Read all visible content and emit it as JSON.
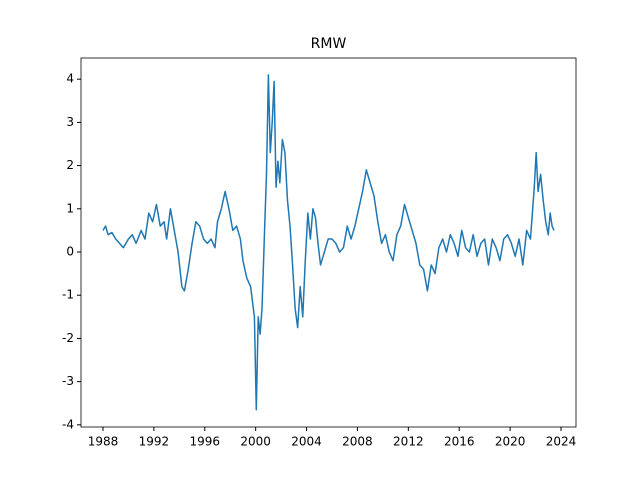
{
  "chart_data": {
    "type": "line",
    "title": "RMW",
    "x": [
      1988.0,
      1988.2,
      1988.4,
      1988.7,
      1989.0,
      1989.3,
      1989.6,
      1990.0,
      1990.3,
      1990.6,
      1991.0,
      1991.3,
      1991.6,
      1991.9,
      1992.2,
      1992.5,
      1992.8,
      1993.0,
      1993.3,
      1993.6,
      1993.9,
      1994.2,
      1994.4,
      1994.7,
      1995.0,
      1995.3,
      1995.6,
      1995.9,
      1996.2,
      1996.5,
      1996.8,
      1997.0,
      1997.3,
      1997.6,
      1997.9,
      1998.2,
      1998.5,
      1998.8,
      1999.0,
      1999.3,
      1999.6,
      1999.9,
      2000.05,
      2000.2,
      2000.35,
      2000.5,
      2000.7,
      2000.85,
      2001.0,
      2001.15,
      2001.3,
      2001.45,
      2001.6,
      2001.75,
      2001.9,
      2002.1,
      2002.3,
      2002.5,
      2002.7,
      2002.9,
      2003.1,
      2003.3,
      2003.5,
      2003.7,
      2003.9,
      2004.1,
      2004.3,
      2004.5,
      2004.7,
      2004.9,
      2005.1,
      2005.4,
      2005.7,
      2006.0,
      2006.3,
      2006.6,
      2006.9,
      2007.2,
      2007.5,
      2007.8,
      2008.1,
      2008.4,
      2008.7,
      2009.0,
      2009.3,
      2009.6,
      2009.9,
      2010.2,
      2010.5,
      2010.8,
      2011.1,
      2011.4,
      2011.7,
      2012.0,
      2012.3,
      2012.6,
      2012.9,
      2013.2,
      2013.5,
      2013.8,
      2014.1,
      2014.4,
      2014.7,
      2015.0,
      2015.3,
      2015.6,
      2015.9,
      2016.2,
      2016.5,
      2016.8,
      2017.1,
      2017.4,
      2017.7,
      2018.0,
      2018.3,
      2018.6,
      2018.9,
      2019.2,
      2019.5,
      2019.8,
      2020.1,
      2020.4,
      2020.7,
      2021.0,
      2021.3,
      2021.6,
      2021.9,
      2022.05,
      2022.2,
      2022.4,
      2022.6,
      2022.8,
      2023.0,
      2023.15,
      2023.3,
      2023.45
    ],
    "series": [
      {
        "color": "#1f77b4",
        "values": [
          0.5,
          0.6,
          0.4,
          0.45,
          0.3,
          0.2,
          0.1,
          0.3,
          0.4,
          0.2,
          0.5,
          0.3,
          0.9,
          0.7,
          1.1,
          0.6,
          0.7,
          0.3,
          1.0,
          0.5,
          0.0,
          -0.8,
          -0.9,
          -0.4,
          0.2,
          0.7,
          0.6,
          0.3,
          0.2,
          0.3,
          0.1,
          0.7,
          1.0,
          1.4,
          1.0,
          0.5,
          0.6,
          0.3,
          -0.2,
          -0.6,
          -0.8,
          -1.5,
          -3.65,
          -1.5,
          -1.9,
          -1.3,
          0.5,
          1.8,
          4.1,
          2.3,
          3.0,
          3.95,
          1.5,
          2.1,
          1.6,
          2.6,
          2.3,
          1.2,
          0.6,
          -0.3,
          -1.3,
          -1.75,
          -0.8,
          -1.5,
          -0.2,
          0.9,
          0.3,
          1.0,
          0.8,
          0.2,
          -0.3,
          0.0,
          0.3,
          0.3,
          0.2,
          0.0,
          0.1,
          0.6,
          0.3,
          0.6,
          1.0,
          1.4,
          1.9,
          1.6,
          1.3,
          0.7,
          0.2,
          0.4,
          0.0,
          -0.2,
          0.4,
          0.6,
          1.1,
          0.8,
          0.5,
          0.2,
          -0.3,
          -0.4,
          -0.9,
          -0.3,
          -0.5,
          0.1,
          0.3,
          0.0,
          0.4,
          0.2,
          -0.1,
          0.5,
          0.1,
          0.0,
          0.4,
          -0.1,
          0.2,
          0.3,
          -0.3,
          0.3,
          0.1,
          -0.2,
          0.3,
          0.4,
          0.2,
          -0.1,
          0.3,
          -0.3,
          0.5,
          0.3,
          1.5,
          2.3,
          1.4,
          1.8,
          1.2,
          0.7,
          0.4,
          0.9,
          0.6,
          0.5
        ]
      }
    ],
    "xlim": [
      1986.27,
      2025.18
    ],
    "ylim": [
      -4.05,
      4.49
    ],
    "xticks": [
      1988,
      1992,
      1996,
      2000,
      2004,
      2008,
      2012,
      2016,
      2020,
      2024
    ],
    "yticks": [
      -4,
      -3,
      -2,
      -1,
      0,
      1,
      2,
      3,
      4
    ]
  }
}
